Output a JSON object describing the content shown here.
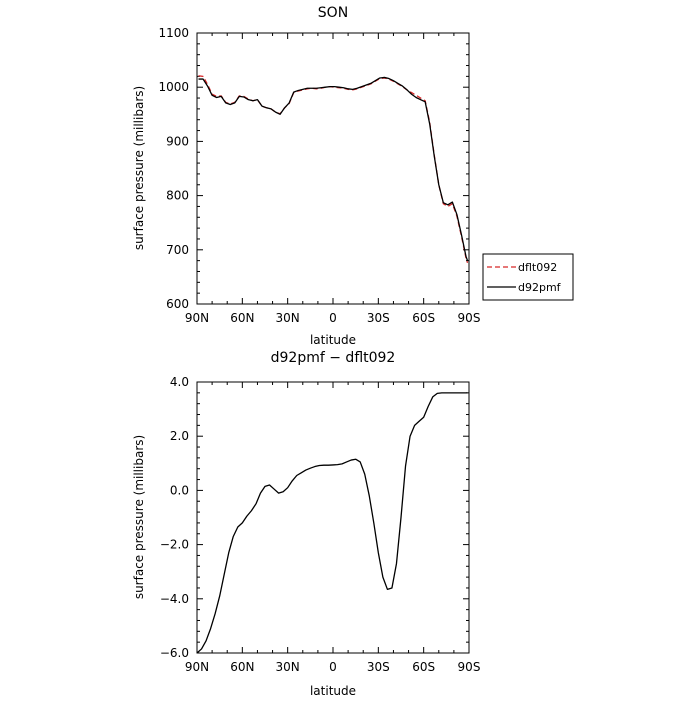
{
  "chart_data": [
    {
      "type": "line",
      "title": "SON",
      "xlabel": "latitude",
      "ylabel": "surface pressure (millibars)",
      "xlim": [
        90,
        -90
      ],
      "ylim": [
        600,
        1100
      ],
      "xticks": [
        90,
        60,
        30,
        0,
        -30,
        -60,
        -90
      ],
      "xtick_labels": [
        "90N",
        "60N",
        "30N",
        "0",
        "30S",
        "60S",
        "90S"
      ],
      "yticks": [
        600,
        700,
        800,
        900,
        1000,
        1100
      ],
      "ytick_labels": [
        "600",
        "700",
        "800",
        "900",
        "1000",
        "1100"
      ],
      "legend_position": "right",
      "series": [
        {
          "name": "dflt092",
          "color": "#d62728",
          "dash": "dashed",
          "x": [
            89,
            86,
            83,
            80,
            77,
            74,
            71,
            68,
            65,
            62,
            59,
            56,
            53,
            50,
            47,
            44,
            41,
            38,
            35,
            32,
            29,
            26,
            23,
            20,
            17,
            14,
            11,
            8,
            5,
            2,
            -1,
            -4,
            -7,
            -10,
            -13,
            -16,
            -19,
            -22,
            -25,
            -28,
            -31,
            -34,
            -37,
            -40,
            -43,
            -46,
            -49,
            -52,
            -55,
            -58,
            -61,
            -64,
            -67,
            -70,
            -73,
            -76,
            -79,
            -82,
            -85,
            -88,
            -89
          ],
          "y": [
            1021,
            1020,
            1005,
            987,
            983,
            984,
            972,
            969,
            972,
            984,
            983,
            978,
            975,
            977,
            965,
            962,
            960,
            954,
            951,
            962,
            970,
            990,
            993,
            995,
            997,
            998,
            997,
            998,
            1000,
            1001,
            1000,
            999,
            998,
            996,
            995,
            997,
            1000,
            1003,
            1006,
            1011,
            1016,
            1017,
            1015,
            1011,
            1006,
            1001,
            995,
            990,
            985,
            980,
            975,
            935,
            875,
            820,
            785,
            780,
            785,
            762,
            725,
            685,
            676
          ]
        },
        {
          "name": "d92pmf",
          "color": "#000000",
          "dash": "solid",
          "x": [
            89,
            86,
            83,
            80,
            77,
            74,
            71,
            68,
            65,
            62,
            59,
            56,
            53,
            50,
            47,
            44,
            41,
            38,
            35,
            32,
            29,
            26,
            23,
            20,
            17,
            14,
            11,
            8,
            5,
            2,
            -1,
            -4,
            -7,
            -10,
            -13,
            -16,
            -19,
            -22,
            -25,
            -28,
            -31,
            -34,
            -37,
            -40,
            -43,
            -46,
            -49,
            -52,
            -55,
            -58,
            -61,
            -64,
            -67,
            -70,
            -73,
            -76,
            -79,
            -82,
            -85,
            -88,
            -89
          ],
          "y": [
            1015,
            1015,
            1002,
            985,
            981,
            983,
            971,
            968,
            971,
            983,
            982,
            977,
            975,
            977,
            965,
            962,
            960,
            954,
            950,
            962,
            971,
            991,
            994,
            996,
            998,
            998,
            998,
            999,
            1000,
            1001,
            1001,
            1000,
            999,
            997,
            996,
            998,
            1001,
            1004,
            1007,
            1012,
            1017,
            1018,
            1016,
            1012,
            1007,
            1002,
            995,
            987,
            981,
            977,
            973,
            932,
            873,
            820,
            787,
            783,
            788,
            765,
            728,
            688,
            680
          ]
        }
      ]
    },
    {
      "type": "line",
      "title": "d92pmf − dflt092",
      "xlabel": "latitude",
      "ylabel": "surface pressure (millibars)",
      "xlim": [
        90,
        -90
      ],
      "ylim": [
        -6,
        4
      ],
      "xticks": [
        90,
        60,
        30,
        0,
        -30,
        -60,
        -90
      ],
      "xtick_labels": [
        "90N",
        "60N",
        "30N",
        "0",
        "30S",
        "60S",
        "90S"
      ],
      "yticks": [
        -6,
        -4,
        -2,
        0,
        2,
        4
      ],
      "ytick_labels": [
        "−6.0",
        "−4.0",
        "−2.0",
        "0.0",
        "2.0",
        "4.0"
      ],
      "series": [
        {
          "color": "#000000",
          "dash": "solid",
          "x": [
            90,
            87,
            84,
            81,
            78,
            75,
            72,
            69,
            66,
            63,
            60,
            57,
            54,
            51,
            48,
            45,
            42,
            39,
            36,
            33,
            30,
            27,
            24,
            21,
            18,
            15,
            12,
            9,
            6,
            3,
            0,
            -3,
            -6,
            -9,
            -12,
            -15,
            -18,
            -21,
            -24,
            -27,
            -30,
            -33,
            -36,
            -39,
            -42,
            -45,
            -48,
            -51,
            -54,
            -57,
            -60,
            -63,
            -66,
            -69,
            -72,
            -75,
            -78,
            -81,
            -84,
            -87,
            -89
          ],
          "y": [
            -6.0,
            -5.85,
            -5.55,
            -5.1,
            -4.55,
            -3.9,
            -3.1,
            -2.3,
            -1.7,
            -1.35,
            -1.2,
            -0.95,
            -0.75,
            -0.5,
            -0.1,
            0.15,
            0.2,
            0.05,
            -0.1,
            -0.05,
            0.1,
            0.35,
            0.55,
            0.65,
            0.75,
            0.82,
            0.88,
            0.92,
            0.93,
            0.93,
            0.94,
            0.95,
            0.98,
            1.05,
            1.12,
            1.15,
            1.05,
            0.6,
            -0.2,
            -1.2,
            -2.3,
            -3.2,
            -3.65,
            -3.6,
            -2.7,
            -1.0,
            0.9,
            2.0,
            2.4,
            2.55,
            2.7,
            3.1,
            3.45,
            3.58,
            3.6,
            3.6,
            3.6,
            3.6,
            3.6,
            3.6,
            3.6
          ]
        }
      ]
    }
  ]
}
